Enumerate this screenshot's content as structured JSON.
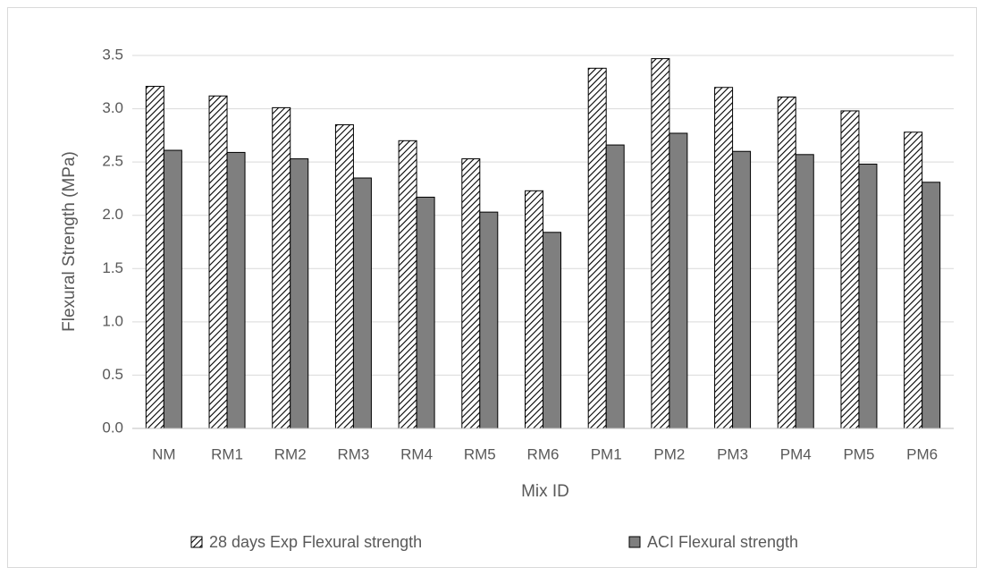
{
  "chart_data": {
    "type": "bar",
    "title": "",
    "xlabel": "Mix ID",
    "ylabel": "Flexural Strength (MPa)",
    "ylim": [
      0,
      3.5
    ],
    "yticks": [
      "0.0",
      "0.5",
      "1.0",
      "1.5",
      "2.0",
      "2.5",
      "3.0",
      "3.5"
    ],
    "grid": true,
    "legend_position": "bottom",
    "categories": [
      "NM",
      "RM1",
      "RM2",
      "RM3",
      "RM4",
      "RM5",
      "RM6",
      "PM1",
      "PM2",
      "PM3",
      "PM4",
      "PM5",
      "PM6"
    ],
    "series": [
      {
        "name": "28 days Exp Flexural strength",
        "fill": "hatched",
        "color": "#000000",
        "values": [
          3.21,
          3.12,
          3.01,
          2.85,
          2.7,
          2.53,
          2.23,
          3.38,
          3.47,
          3.2,
          3.11,
          2.98,
          2.78
        ]
      },
      {
        "name": "ACI  Flexural strength",
        "fill": "solid",
        "color": "#7f7f7f",
        "values": [
          2.61,
          2.59,
          2.53,
          2.35,
          2.17,
          2.03,
          1.84,
          2.66,
          2.77,
          2.6,
          2.57,
          2.48,
          2.31
        ]
      }
    ]
  }
}
